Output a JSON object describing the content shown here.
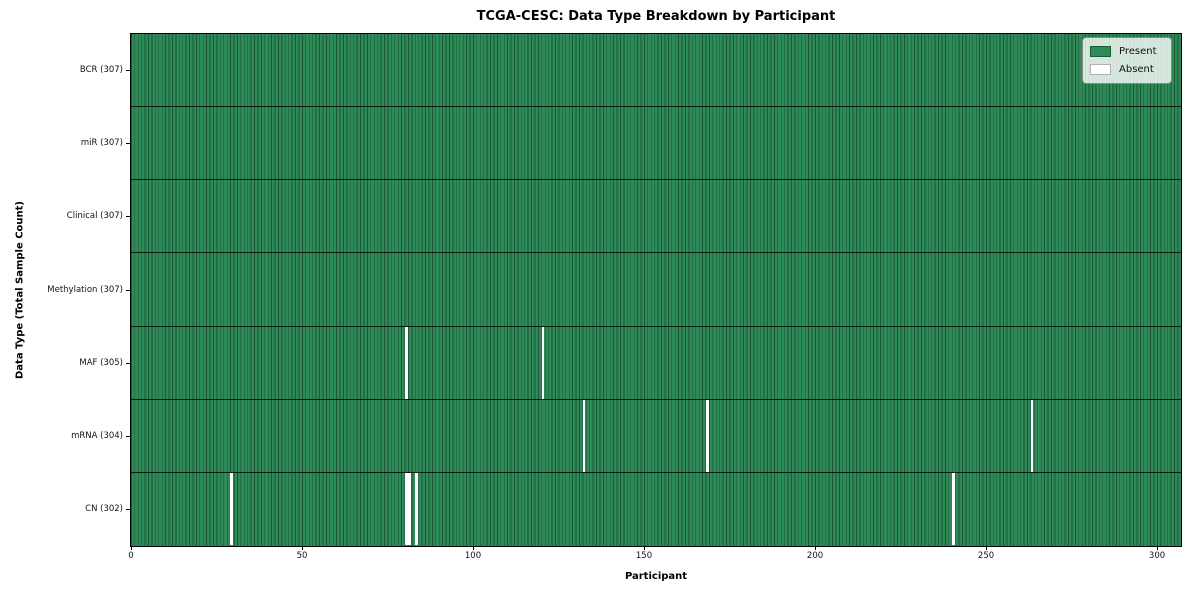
{
  "title": "TCGA-CESC: Data Type Breakdown by Participant",
  "chart_data": {
    "type": "heatmap",
    "title": "TCGA-CESC: Data Type Breakdown by Participant",
    "xlabel": "Participant",
    "ylabel": "Data Type (Total Sample Count)",
    "x_ticks": [
      0,
      50,
      100,
      150,
      200,
      250,
      300
    ],
    "x_range": [
      0,
      307
    ],
    "n_participants": 307,
    "grid": false,
    "legend_position": "upper right",
    "rows": [
      {
        "label": "BCR (307)",
        "name": "BCR",
        "total": 307,
        "absent_participants": []
      },
      {
        "label": "miR (307)",
        "name": "miR",
        "total": 307,
        "absent_participants": []
      },
      {
        "label": "Clinical (307)",
        "name": "Clinical",
        "total": 307,
        "absent_participants": []
      },
      {
        "label": "Methylation (307)",
        "name": "Methylation",
        "total": 307,
        "absent_participants": []
      },
      {
        "label": "MAF (305)",
        "name": "MAF",
        "total": 305,
        "absent_participants": [
          80,
          120
        ]
      },
      {
        "label": "mRNA (304)",
        "name": "mRNA",
        "total": 304,
        "absent_participants": [
          132,
          168,
          263
        ]
      },
      {
        "label": "CN (302)",
        "name": "CN",
        "total": 302,
        "absent_participants": [
          29,
          80,
          81,
          83,
          240
        ]
      }
    ],
    "legend": [
      {
        "label": "Present",
        "color": "#2e8b57"
      },
      {
        "label": "Absent",
        "color": "#ffffff"
      }
    ],
    "colors": {
      "present": "#2e8b57",
      "absent": "#ffffff",
      "cell_border": "#1a5c38",
      "row_separator": "#000000"
    }
  }
}
